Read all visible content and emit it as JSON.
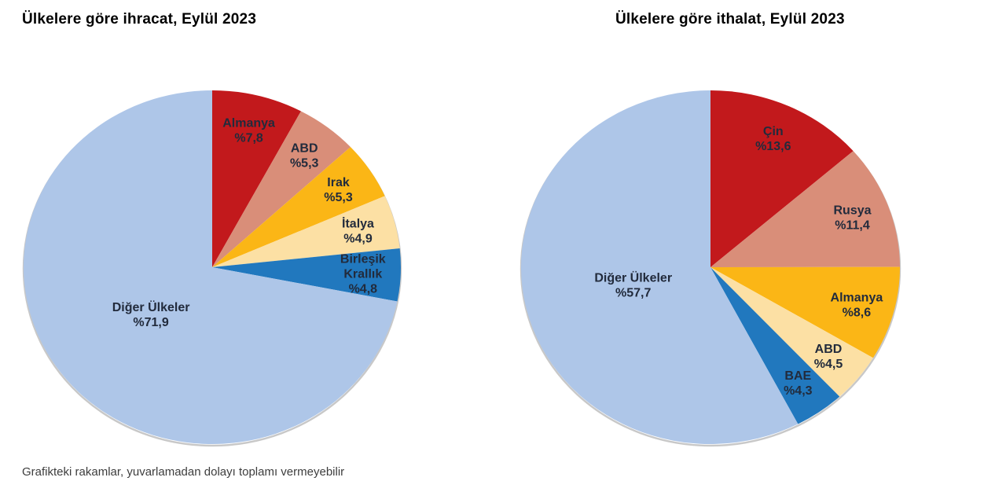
{
  "page": {
    "footer_note": "Grafikteki rakamlar, yuvarlamadan dolayı toplamı vermeyebilir"
  },
  "chart_data": [
    {
      "type": "pie",
      "title": "Ülkelere göre ihracat, Eylül 2023",
      "unit": "percent",
      "start_angle_deg": 0,
      "direction": "clockwise",
      "slices": [
        {
          "name": "Almanya",
          "value": 7.8,
          "value_label": "%7,8",
          "color": "#c2191c"
        },
        {
          "name": "ABD",
          "value": 5.3,
          "value_label": "%5,3",
          "color": "#d98e79"
        },
        {
          "name": "Irak",
          "value": 5.3,
          "value_label": "%5,3",
          "color": "#fbb616"
        },
        {
          "name": "İtalya",
          "value": 4.9,
          "value_label": "%4,9",
          "color": "#fce0a4"
        },
        {
          "name": "Birleşik Krallık",
          "value": 4.8,
          "value_label": "%4,8",
          "color": "#2178be",
          "label_lines": [
            "Birleşik",
            "Krallık"
          ]
        },
        {
          "name": "Diğer Ülkeler",
          "value": 71.9,
          "value_label": "%71,9",
          "color": "#aec6e8"
        }
      ]
    },
    {
      "type": "pie",
      "title": "Ülkelere göre ithalat, Eylül 2023",
      "unit": "percent",
      "start_angle_deg": 0,
      "direction": "clockwise",
      "slices": [
        {
          "name": "Çin",
          "value": 13.6,
          "value_label": "%13,6",
          "color": "#c2191c"
        },
        {
          "name": "Rusya",
          "value": 11.4,
          "value_label": "%11,4",
          "color": "#d98e79"
        },
        {
          "name": "Almanya",
          "value": 8.6,
          "value_label": "%8,6",
          "color": "#fbb616"
        },
        {
          "name": "ABD",
          "value": 4.5,
          "value_label": "%4,5",
          "color": "#fce0a4"
        },
        {
          "name": "BAE",
          "value": 4.3,
          "value_label": "%4,3",
          "color": "#2178be"
        },
        {
          "name": "Diğer Ülkeler",
          "value": 57.7,
          "value_label": "%57,7",
          "color": "#aec6e8"
        }
      ]
    }
  ]
}
